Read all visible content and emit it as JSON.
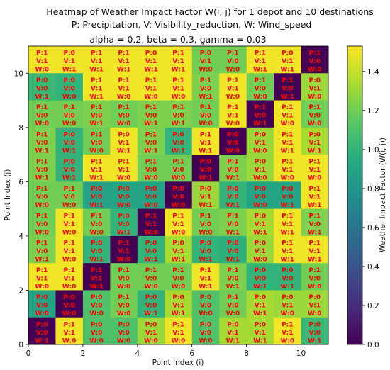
{
  "chart_data": {
    "type": "heatmap",
    "title_lines": [
      "Heatmap of Weather Impact Factor W(i, j) for 1 depot and 10 destinations",
      "P: Precipitation, V: Visibility_reduction, W: Wind_speed",
      "alpha = 0.2, beta = 0.3, gamma = 0.03"
    ],
    "xlabel": "Point Index (i)",
    "ylabel": "Point Index (j)",
    "colorbar_label": "Weather Impact Factor (W(i, j))",
    "colorscale": "viridis",
    "vmin": 0.0,
    "vmax": 1.53,
    "xlim": [
      0,
      11
    ],
    "ylim": [
      0,
      11
    ],
    "xticks": [
      0,
      2,
      4,
      6,
      8,
      10
    ],
    "yticks": [
      0,
      2,
      4,
      6,
      8,
      10
    ],
    "colorbar_ticks": [
      0.0,
      0.2,
      0.4,
      0.6,
      0.8,
      1.0,
      1.2,
      1.4
    ],
    "rows_top_to_bottom": [
      {
        "j": 10,
        "cells": [
          {
            "p": 1,
            "v": 1,
            "w": 0,
            "value": 1.5
          },
          {
            "p": 0,
            "v": 1,
            "w": 1,
            "value": 1.5
          },
          {
            "p": 1,
            "v": 1,
            "w": 1,
            "value": 1.5
          },
          {
            "p": 1,
            "v": 1,
            "w": 1,
            "value": 1.5
          },
          {
            "p": 0,
            "v": 1,
            "w": 1,
            "value": 1.5
          },
          {
            "p": 1,
            "v": 1,
            "w": 1,
            "value": 1.5
          },
          {
            "p": 0,
            "v": 1,
            "w": 0,
            "value": 1.2
          },
          {
            "p": 1,
            "v": 0,
            "w": 0,
            "value": 1.2
          },
          {
            "p": 1,
            "v": 1,
            "w": 1,
            "value": 1.5
          },
          {
            "p": 0,
            "v": 1,
            "w": 1,
            "value": 1.5
          },
          {
            "p": 1,
            "v": 0,
            "w": 0,
            "value": 0.0
          }
        ]
      },
      {
        "j": 9,
        "cells": [
          {
            "p": 0,
            "v": 0,
            "w": 1,
            "value": 1.03
          },
          {
            "p": 0,
            "v": 0,
            "w": 0,
            "value": 1.0
          },
          {
            "p": 1,
            "v": 1,
            "w": 1,
            "value": 1.5
          },
          {
            "p": 1,
            "v": 1,
            "w": 0,
            "value": 1.5
          },
          {
            "p": 1,
            "v": 1,
            "w": 0,
            "value": 1.5
          },
          {
            "p": 1,
            "v": 1,
            "w": 0,
            "value": 1.5
          },
          {
            "p": 1,
            "v": 0,
            "w": 1,
            "value": 1.23
          },
          {
            "p": 1,
            "v": 1,
            "w": 0,
            "value": 1.5
          },
          {
            "p": 1,
            "v": 0,
            "w": 0,
            "value": 1.2
          },
          {
            "p": 1,
            "v": 0,
            "w": 1,
            "value": 0.0
          },
          {
            "p": 0,
            "v": 1,
            "w": 0,
            "value": 1.3
          }
        ]
      },
      {
        "j": 8,
        "cells": [
          {
            "p": 1,
            "v": 0,
            "w": 0,
            "value": 1.2
          },
          {
            "p": 1,
            "v": 0,
            "w": 0,
            "value": 1.2
          },
          {
            "p": 1,
            "v": 0,
            "w": 1,
            "value": 1.23
          },
          {
            "p": 1,
            "v": 0,
            "w": 0,
            "value": 1.2
          },
          {
            "p": 1,
            "v": 0,
            "w": 1,
            "value": 1.23
          },
          {
            "p": 1,
            "v": 0,
            "w": 1,
            "value": 1.23
          },
          {
            "p": 1,
            "v": 0,
            "w": 0,
            "value": 1.2
          },
          {
            "p": 1,
            "v": 1,
            "w": 0,
            "value": 1.5
          },
          {
            "p": 1,
            "v": 0,
            "w": 1,
            "value": 0.0
          },
          {
            "p": 1,
            "v": 1,
            "w": 0,
            "value": 1.5
          },
          {
            "p": 1,
            "v": 0,
            "w": 0,
            "value": 1.2
          }
        ]
      },
      {
        "j": 7,
        "cells": [
          {
            "p": 1,
            "v": 0,
            "w": 1,
            "value": 1.23
          },
          {
            "p": 0,
            "v": 0,
            "w": 1,
            "value": 1.0
          },
          {
            "p": 1,
            "v": 0,
            "w": 0,
            "value": 1.2
          },
          {
            "p": 0,
            "v": 1,
            "w": 1,
            "value": 1.5
          },
          {
            "p": 1,
            "v": 0,
            "w": 1,
            "value": 1.23
          },
          {
            "p": 0,
            "v": 0,
            "w": 1,
            "value": 1.0
          },
          {
            "p": 1,
            "v": 1,
            "w": 1,
            "value": 1.5
          },
          {
            "p": 0,
            "v": 0,
            "w": 0,
            "value": 0.0
          },
          {
            "p": 0,
            "v": 1,
            "w": 0,
            "value": 1.3
          },
          {
            "p": 1,
            "v": 1,
            "w": 1,
            "value": 1.5
          },
          {
            "p": 0,
            "v": 1,
            "w": 1,
            "value": 1.33
          }
        ]
      },
      {
        "j": 6,
        "cells": [
          {
            "p": 1,
            "v": 0,
            "w": 1,
            "value": 1.23
          },
          {
            "p": 0,
            "v": 0,
            "w": 1,
            "value": 1.0
          },
          {
            "p": 1,
            "v": 1,
            "w": 1,
            "value": 1.5
          },
          {
            "p": 1,
            "v": 1,
            "w": 0,
            "value": 1.5
          },
          {
            "p": 1,
            "v": 0,
            "w": 0,
            "value": 1.2
          },
          {
            "p": 1,
            "v": 0,
            "w": 0,
            "value": 1.2
          },
          {
            "p": 0,
            "v": 0,
            "w": 1,
            "value": 0.0
          },
          {
            "p": 1,
            "v": 0,
            "w": 1,
            "value": 1.23
          },
          {
            "p": 0,
            "v": 1,
            "w": 0,
            "value": 1.3
          },
          {
            "p": 1,
            "v": 1,
            "w": 0,
            "value": 1.5
          },
          {
            "p": 1,
            "v": 1,
            "w": 0,
            "value": 1.5
          }
        ]
      },
      {
        "j": 5,
        "cells": [
          {
            "p": 1,
            "v": 0,
            "w": 0,
            "value": 1.2
          },
          {
            "p": 1,
            "v": 0,
            "w": 0,
            "value": 1.2
          },
          {
            "p": 0,
            "v": 0,
            "w": 1,
            "value": 0.88
          },
          {
            "p": 0,
            "v": 0,
            "w": 0,
            "value": 0.9
          },
          {
            "p": 0,
            "v": 0,
            "w": 0,
            "value": 0.9
          },
          {
            "p": 0,
            "v": 0,
            "w": 0,
            "value": 0.0
          },
          {
            "p": 0,
            "v": 1,
            "w": 1,
            "value": 1.3
          },
          {
            "p": 0,
            "v": 0,
            "w": 1,
            "value": 1.0
          },
          {
            "p": 0,
            "v": 0,
            "w": 0,
            "value": 0.9
          },
          {
            "p": 0,
            "v": 0,
            "w": 1,
            "value": 0.9
          },
          {
            "p": 1,
            "v": 1,
            "w": 1,
            "value": 1.5
          }
        ]
      },
      {
        "j": 4,
        "cells": [
          {
            "p": 1,
            "v": 0,
            "w": 0,
            "value": 1.2
          },
          {
            "p": 1,
            "v": 1,
            "w": 0,
            "value": 1.5
          },
          {
            "p": 1,
            "v": 0,
            "w": 0,
            "value": 1.2
          },
          {
            "p": 0,
            "v": 0,
            "w": 1,
            "value": 1.0
          },
          {
            "p": 1,
            "v": 1,
            "w": 0,
            "value": 0.0
          },
          {
            "p": 1,
            "v": 1,
            "w": 0,
            "value": 1.5
          },
          {
            "p": 1,
            "v": 0,
            "w": 0,
            "value": 1.2
          },
          {
            "p": 1,
            "v": 0,
            "w": 1,
            "value": 1.23
          },
          {
            "p": 0,
            "v": 1,
            "w": 1,
            "value": 1.33
          },
          {
            "p": 1,
            "v": 1,
            "w": 1,
            "value": 1.5
          },
          {
            "p": 1,
            "v": 0,
            "w": 1,
            "value": 1.23
          }
        ]
      },
      {
        "j": 3,
        "cells": [
          {
            "p": 1,
            "v": 0,
            "w": 1,
            "value": 1.23
          },
          {
            "p": 1,
            "v": 1,
            "w": 0,
            "value": 1.5
          },
          {
            "p": 0,
            "v": 0,
            "w": 1,
            "value": 1.0
          },
          {
            "p": 1,
            "v": 1,
            "w": 0,
            "value": 0.0
          },
          {
            "p": 0,
            "v": 0,
            "w": 1,
            "value": 1.0
          },
          {
            "p": 0,
            "v": 1,
            "w": 1,
            "value": 1.33
          },
          {
            "p": 0,
            "v": 0,
            "w": 1,
            "value": 1.0
          },
          {
            "p": 0,
            "v": 0,
            "w": 1,
            "value": 0.98
          },
          {
            "p": 0,
            "v": 1,
            "w": 0,
            "value": 1.3
          },
          {
            "p": 1,
            "v": 1,
            "w": 1,
            "value": 1.5
          },
          {
            "p": 1,
            "v": 1,
            "w": 1,
            "value": 1.5
          }
        ]
      },
      {
        "j": 2,
        "cells": [
          {
            "p": 1,
            "v": 1,
            "w": 0,
            "value": 1.5
          },
          {
            "p": 1,
            "v": 1,
            "w": 0,
            "value": 1.5
          },
          {
            "p": 1,
            "v": 1,
            "w": 1,
            "value": 0.0
          },
          {
            "p": 1,
            "v": 0,
            "w": 0,
            "value": 1.2
          },
          {
            "p": 1,
            "v": 0,
            "w": 0,
            "value": 1.2
          },
          {
            "p": 1,
            "v": 0,
            "w": 0,
            "value": 1.2
          },
          {
            "p": 1,
            "v": 1,
            "w": 1,
            "value": 1.5
          },
          {
            "p": 1,
            "v": 0,
            "w": 1,
            "value": 1.23
          },
          {
            "p": 0,
            "v": 0,
            "w": 1,
            "value": 1.0
          },
          {
            "p": 0,
            "v": 0,
            "w": 1,
            "value": 1.0
          },
          {
            "p": 1,
            "v": 0,
            "w": 0,
            "value": 1.2
          }
        ]
      },
      {
        "j": 1,
        "cells": [
          {
            "p": 0,
            "v": 0,
            "w": 0,
            "value": 0.9
          },
          {
            "p": 0,
            "v": 0,
            "w": 0,
            "value": 0.0
          },
          {
            "p": 0,
            "v": 0,
            "w": 0,
            "value": 1.1
          },
          {
            "p": 1,
            "v": 0,
            "w": 0,
            "value": 1.2
          },
          {
            "p": 0,
            "v": 0,
            "w": 1,
            "value": 1.0
          },
          {
            "p": 0,
            "v": 1,
            "w": 1,
            "value": 1.33
          },
          {
            "p": 0,
            "v": 0,
            "w": 0,
            "value": 1.1
          },
          {
            "p": 1,
            "v": 0,
            "w": 0,
            "value": 1.2
          },
          {
            "p": 0,
            "v": 1,
            "w": 1,
            "value": 1.33
          },
          {
            "p": 0,
            "v": 1,
            "w": 0,
            "value": 1.3
          },
          {
            "p": 0,
            "v": 1,
            "w": 0,
            "value": 1.3
          }
        ]
      },
      {
        "j": 0,
        "cells": [
          {
            "p": 0,
            "v": 0,
            "w": 1,
            "value": 0.0
          },
          {
            "p": 1,
            "v": 1,
            "w": 0,
            "value": 1.5
          },
          {
            "p": 0,
            "v": 0,
            "w": 0,
            "value": 1.1
          },
          {
            "p": 0,
            "v": 0,
            "w": 0,
            "value": 1.1
          },
          {
            "p": 0,
            "v": 1,
            "w": 0,
            "value": 1.3
          },
          {
            "p": 1,
            "v": 1,
            "w": 0,
            "value": 1.5
          },
          {
            "p": 0,
            "v": 0,
            "w": 0,
            "value": 1.1
          },
          {
            "p": 0,
            "v": 1,
            "w": 1,
            "value": 1.33
          },
          {
            "p": 0,
            "v": 1,
            "w": 1,
            "value": 1.33
          },
          {
            "p": 1,
            "v": 1,
            "w": 0,
            "value": 1.5
          },
          {
            "p": 0,
            "v": 0,
            "w": 1,
            "value": 1.03
          }
        ]
      }
    ]
  }
}
